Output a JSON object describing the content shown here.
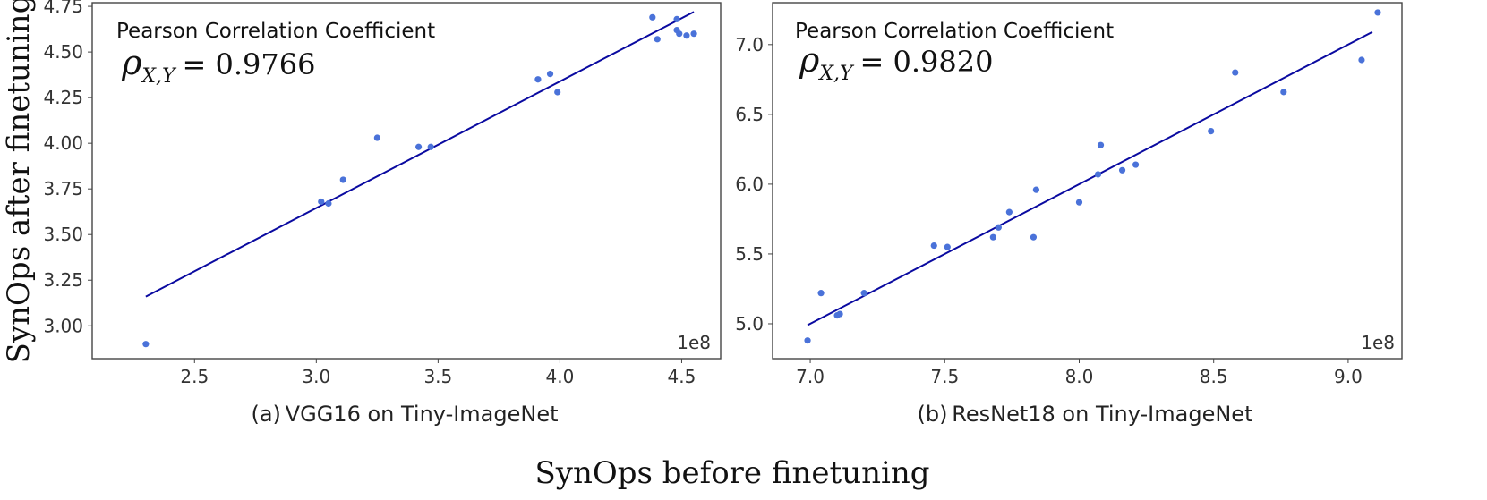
{
  "figure": {
    "xlabel": "SynOps before finetuning",
    "ylabel": "SynOps after finetuning"
  },
  "chart_data": [
    {
      "type": "scatter",
      "subtitle": "(a) VGG16 on Tiny-ImageNet",
      "annotation": "Pearson Correlation Coefficient",
      "rho_symbol": "ρ",
      "rho_subscript": "X,Y",
      "rho_value": "= 0.9766",
      "offset_label": "1e8",
      "xlim": [
        2.08,
        4.66
      ],
      "ylim": [
        2.82,
        4.77
      ],
      "xticks": [
        2.5,
        3.0,
        3.5,
        4.0,
        4.5
      ],
      "xtick_labels": [
        "2.5",
        "3.0",
        "3.5",
        "4.0",
        "4.5"
      ],
      "yticks": [
        3.0,
        3.25,
        3.5,
        3.75,
        4.0,
        4.25,
        4.5,
        4.75
      ],
      "ytick_labels": [
        "3.00",
        "3.25",
        "3.50",
        "3.75",
        "4.00",
        "4.25",
        "4.50",
        "4.75"
      ],
      "points": [
        [
          2.3,
          2.9
        ],
        [
          3.02,
          3.68
        ],
        [
          3.05,
          3.67
        ],
        [
          3.11,
          3.8
        ],
        [
          3.25,
          4.03
        ],
        [
          3.42,
          3.98
        ],
        [
          3.47,
          3.98
        ],
        [
          3.91,
          4.35
        ],
        [
          3.96,
          4.38
        ],
        [
          3.99,
          4.28
        ],
        [
          4.38,
          4.69
        ],
        [
          4.4,
          4.57
        ],
        [
          4.48,
          4.68
        ],
        [
          4.48,
          4.62
        ],
        [
          4.49,
          4.6
        ],
        [
          4.52,
          4.59
        ],
        [
          4.55,
          4.6
        ]
      ],
      "fit_line": [
        [
          2.3,
          3.16
        ],
        [
          4.55,
          4.72
        ]
      ],
      "grid": false
    },
    {
      "type": "scatter",
      "subtitle": "(b) ResNet18 on Tiny-ImageNet",
      "annotation": "Pearson Correlation Coefficient",
      "rho_symbol": "ρ",
      "rho_subscript": "X,Y",
      "rho_value": "= 0.9820",
      "offset_label": "1e8",
      "xlim": [
        6.86,
        9.2
      ],
      "ylim": [
        4.75,
        7.3
      ],
      "xticks": [
        7.0,
        7.5,
        8.0,
        8.5,
        9.0
      ],
      "xtick_labels": [
        "7.0",
        "7.5",
        "8.0",
        "8.5",
        "9.0"
      ],
      "yticks": [
        5.0,
        5.5,
        6.0,
        6.5,
        7.0
      ],
      "ytick_labels": [
        "5.0",
        "5.5",
        "6.0",
        "6.5",
        "7.0"
      ],
      "points": [
        [
          6.99,
          4.88
        ],
        [
          7.04,
          5.22
        ],
        [
          7.1,
          5.06
        ],
        [
          7.11,
          5.07
        ],
        [
          7.2,
          5.22
        ],
        [
          7.46,
          5.56
        ],
        [
          7.51,
          5.55
        ],
        [
          7.68,
          5.62
        ],
        [
          7.7,
          5.69
        ],
        [
          7.74,
          5.8
        ],
        [
          7.83,
          5.62
        ],
        [
          7.84,
          5.96
        ],
        [
          8.0,
          5.87
        ],
        [
          8.07,
          6.07
        ],
        [
          8.08,
          6.28
        ],
        [
          8.16,
          6.1
        ],
        [
          8.21,
          6.14
        ],
        [
          8.49,
          6.38
        ],
        [
          8.58,
          6.8
        ],
        [
          8.76,
          6.66
        ],
        [
          9.05,
          6.89
        ],
        [
          9.11,
          7.23
        ]
      ],
      "fit_line": [
        [
          6.99,
          4.99
        ],
        [
          9.09,
          7.09
        ]
      ],
      "grid": false
    }
  ]
}
